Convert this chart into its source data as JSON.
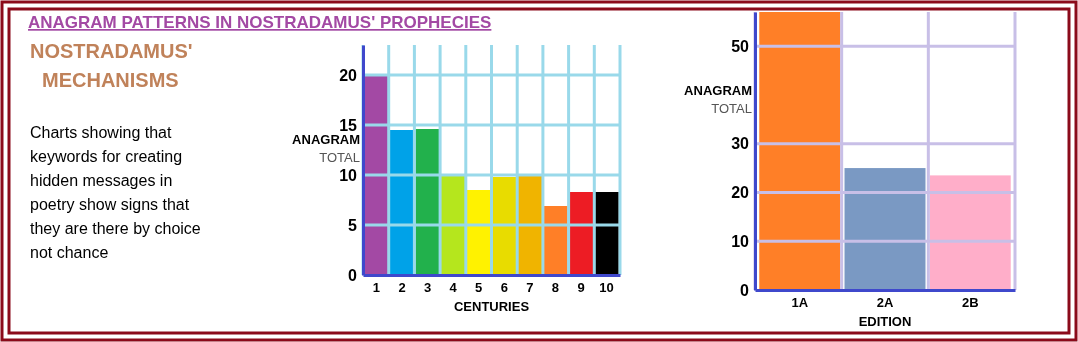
{
  "chart_data": [
    {
      "type": "other",
      "title": "ANAGRAM PATTERNS IN NOSTRADAMUS' PROPHECIES",
      "subtitle": "NOSTRADAMUS' MECHANISMS",
      "annotations": [
        "Charts showing that keywords for creating hidden messages in poetry show signs that they are there by choice not chance"
      ]
    },
    {
      "type": "bar",
      "xlabel": "CENTURIES",
      "ylabel": "ANAGRAM TOTAL",
      "categories": [
        "1",
        "2",
        "3",
        "4",
        "5",
        "6",
        "7",
        "8",
        "9",
        "10"
      ],
      "values": [
        20,
        14.5,
        14.6,
        10,
        8.5,
        9.8,
        10,
        6.9,
        8.3,
        8.3
      ],
      "colors": [
        "#a349a4",
        "#00a2e8",
        "#22b14c",
        "#b5e61d",
        "#fff200",
        "#e8dc00",
        "#f0b400",
        "#ff7f27",
        "#ed1c24",
        "#000000"
      ],
      "ylim": [
        0,
        23
      ],
      "yticks": [
        0,
        5,
        10,
        15,
        20
      ],
      "grid": true
    },
    {
      "type": "bar",
      "xlabel": "EDITION",
      "ylabel": "ANAGRAM TOTAL",
      "categories": [
        "1A",
        "2A",
        "2B"
      ],
      "values": [
        57,
        25,
        23.5
      ],
      "colors": [
        "#ff7f27",
        "#7a99c3",
        "#ffaec9"
      ],
      "ylim": [
        0,
        57
      ],
      "yticks": [
        0,
        10,
        20,
        30,
        50
      ],
      "grid": true
    }
  ]
}
